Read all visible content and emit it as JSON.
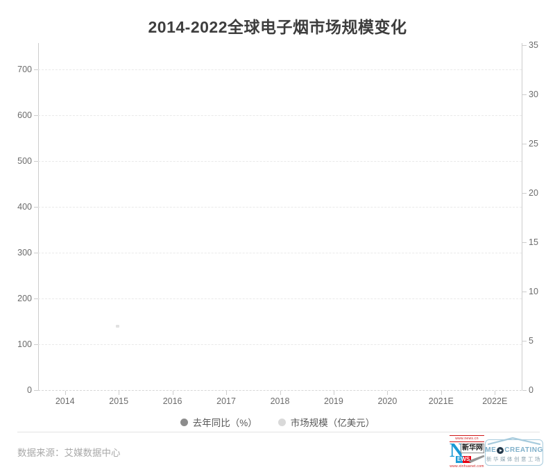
{
  "title": "2014-2022全球电子烟市场规模变化",
  "chart_data": {
    "type": "bar",
    "title": "2014-2022全球电子烟市场规模变化",
    "categories": [
      "2014",
      "2015",
      "2016",
      "2017",
      "2018",
      "2019",
      "2020",
      "2021E",
      "2022E"
    ],
    "series": [
      {
        "name": "去年同比（%）",
        "values": [],
        "marker_color": "#8c8c8c"
      },
      {
        "name": "市场规模（亿美元）",
        "values": [],
        "marker_color": "#d9d9d9"
      }
    ],
    "plot_area_empty": true,
    "xlabel": "",
    "ylabel_left": "",
    "ylabel_right": "",
    "ylim_left": [
      0,
      700
    ],
    "ylim_right": [
      0,
      35
    ],
    "grid": "horizontal-dashed",
    "legend_position": "bottom-center"
  },
  "axes": {
    "left": {
      "ticks": [
        {
          "label": "0",
          "value": 0
        },
        {
          "label": "100",
          "value": 100
        },
        {
          "label": "200",
          "value": 200
        },
        {
          "label": "300",
          "value": 300
        },
        {
          "label": "400",
          "value": 400
        },
        {
          "label": "500",
          "value": 500
        },
        {
          "label": "600",
          "value": 600
        },
        {
          "label": "700",
          "value": 700
        }
      ]
    },
    "right": {
      "ticks": [
        {
          "label": "0",
          "value": 0
        },
        {
          "label": "5",
          "value": 5
        },
        {
          "label": "10",
          "value": 10
        },
        {
          "label": "15",
          "value": 15
        },
        {
          "label": "20",
          "value": 20
        },
        {
          "label": "25",
          "value": 25
        },
        {
          "label": "30",
          "value": 30
        },
        {
          "label": "35",
          "value": 35
        }
      ]
    },
    "x": {
      "labels": [
        "2014",
        "2015",
        "2016",
        "2017",
        "2018",
        "2019",
        "2020",
        "2021E",
        "2022E"
      ]
    }
  },
  "legend": {
    "items": [
      {
        "label": "去年同比（%）",
        "color": "#8c8c8c"
      },
      {
        "label": "市场规模（亿美元）",
        "color": "#d9d9d9"
      }
    ]
  },
  "footer": {
    "source": "数据来源：艾媒数据中心",
    "logos": {
      "xinhua": {
        "url_top": "www.news.cn",
        "n": "N",
        "name": "新华网",
        "ews": "EWS",
        "url_bottom": "www.xinhuanet.com"
      },
      "med": {
        "prefix": "ME",
        "suffix": "CREATING",
        "full_name": "MEDCREATING",
        "subtitle": "新华媒体创意工场"
      }
    }
  },
  "colors": {
    "title_text": "#3d3d3d",
    "axis_label": "#6b6b6b",
    "axis_line": "#cccccc",
    "gridline": "#e9e9e9",
    "legend_text": "#595959",
    "series1_marker": "#8c8c8c",
    "series2_marker": "#d9d9d9",
    "xinhua_blue": "#1a9ad6",
    "xinhua_red": "#e60012",
    "med_blue": "#7fb0ca"
  }
}
